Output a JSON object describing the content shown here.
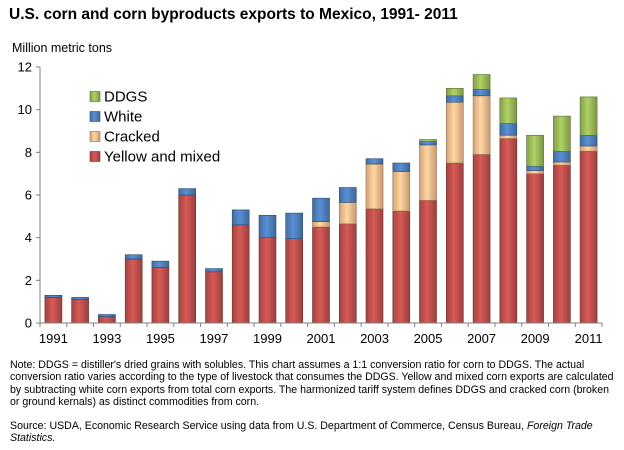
{
  "title": "U.S. corn and corn byproducts exports to Mexico, 1991- 2011",
  "note": "Note:  DDGS = distiller's dried grains with solubles.  This chart assumes a 1:1 conversion ratio for corn to DDGS.  The actual conversion ratio varies according to the type of livestock that consumes the DDGS.  Yellow and mixed corn exports are calculated by subtracting white corn exports  from total corn exports.  The harmonized tariff system defines DDGS and cracked corn (broken or ground kernals) as distinct commodities from corn.",
  "source": {
    "text": "Source:  USDA, Economic Research Service using data from U.S. Department of Commerce, Census Bureau, ",
    "italic": "Foreign Trade Statistics."
  },
  "colors": {
    "yellow": "#c0504d",
    "cracked": "#f9bf8f",
    "white": "#4f81bd",
    "ddgs": "#9bbb59"
  },
  "chart_data": {
    "type": "bar",
    "stacked": true,
    "title": "U.S. corn and corn byproducts exports to Mexico, 1991- 2011",
    "ylabel": "Million metric tons",
    "xlabel": "",
    "ylim": [
      0,
      12
    ],
    "yticks": [
      "0",
      "2",
      "4",
      "6",
      "8",
      "10",
      "12"
    ],
    "legend_position": "top-left",
    "grid": false,
    "categories": [
      "1991",
      "1992",
      "1993",
      "1994",
      "1995",
      "1996",
      "1997",
      "1998",
      "1999",
      "2000",
      "2001",
      "2002",
      "2003",
      "2004",
      "2005",
      "2006",
      "2007",
      "2008",
      "2009",
      "2010",
      "2011"
    ],
    "xtick_labels": [
      "1991",
      "",
      "1993",
      "",
      "1995",
      "",
      "1997",
      "",
      "1999",
      "",
      "2001",
      "",
      "2003",
      "",
      "2005",
      "",
      "2007",
      "",
      "2009",
      "",
      "2011"
    ],
    "series": [
      {
        "name": "Yellow and mixed",
        "color_key": "yellow",
        "values": [
          1.2,
          1.1,
          0.3,
          3.0,
          2.6,
          6.0,
          2.4,
          4.6,
          4.0,
          3.95,
          4.5,
          4.65,
          5.35,
          5.25,
          5.75,
          7.5,
          7.9,
          8.65,
          7.0,
          7.4,
          8.05
        ]
      },
      {
        "name": "Cracked",
        "color_key": "cracked",
        "values": [
          0.0,
          0.0,
          0.0,
          0.0,
          0.0,
          0.0,
          0.0,
          0.0,
          0.0,
          0.0,
          0.25,
          1.0,
          2.1,
          1.85,
          2.6,
          2.85,
          2.75,
          0.15,
          0.15,
          0.15,
          0.25
        ]
      },
      {
        "name": "White",
        "color_key": "white",
        "values": [
          0.1,
          0.1,
          0.1,
          0.2,
          0.3,
          0.3,
          0.15,
          0.7,
          1.05,
          1.2,
          1.1,
          0.7,
          0.25,
          0.4,
          0.15,
          0.3,
          0.3,
          0.55,
          0.2,
          0.5,
          0.5
        ]
      },
      {
        "name": "DDGS",
        "color_key": "ddgs",
        "values": [
          0,
          0,
          0,
          0,
          0,
          0,
          0,
          0,
          0,
          0,
          0,
          0,
          0,
          0,
          0.1,
          0.35,
          0.7,
          1.2,
          1.45,
          1.65,
          1.8
        ]
      }
    ],
    "legend_order": [
      "DDGS",
      "White",
      "Cracked",
      "Yellow and mixed"
    ]
  }
}
